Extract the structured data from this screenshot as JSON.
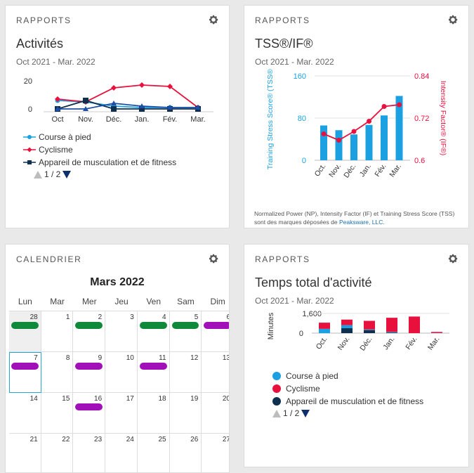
{
  "colors": {
    "course": "#1ba1e2",
    "cyclisme": "#e8103d",
    "muscu": "#0e2f4e",
    "green": "#0e8a3a",
    "purple": "#a00fb7"
  },
  "activites": {
    "eyebrow": "RAPPORTS",
    "title": "Activités",
    "range": "Oct 2021 - Mar. 2022",
    "y_ticks": [
      "20",
      "0"
    ],
    "chart_data": {
      "type": "line",
      "categories": [
        "Oct",
        "Nov.",
        "Déc.",
        "Jan.",
        "Fév.",
        "Mar."
      ],
      "ylim": [
        0,
        20
      ],
      "series": [
        {
          "name": "Course à pied",
          "values": [
            6,
            5,
            2,
            1,
            1,
            1
          ]
        },
        {
          "name": "Cyclisme",
          "values": [
            7,
            5,
            15,
            17,
            16,
            1
          ]
        },
        {
          "name": "Appareil de musculation et de fitness",
          "values": [
            0,
            6,
            0,
            0,
            0,
            0
          ]
        },
        {
          "name": "",
          "values": [
            0,
            0,
            4,
            2,
            1,
            1
          ]
        }
      ]
    },
    "legend": [
      "Course à pied",
      "Cyclisme",
      "Appareil de musculation et de fitness"
    ],
    "pager": "1 / 2"
  },
  "tss": {
    "eyebrow": "RAPPORTS",
    "title": "TSS®/IF®",
    "range": "Oct 2021 - Mar. 2022",
    "left_axis_label": "Training Stress Score® (TSS®)",
    "right_axis_label": "Intensity Factor® (IF®)",
    "left_ticks": [
      "160",
      "80",
      "0"
    ],
    "right_ticks": [
      "0.84",
      "0.72",
      "0.6"
    ],
    "chart_data": {
      "type": "bar",
      "categories": [
        "Oct.",
        "Nov.",
        "Déc.",
        "Jan.",
        "Fév.",
        "Mar."
      ],
      "tss_values": [
        66,
        57,
        49,
        67,
        85,
        122
      ],
      "if_values": [
        0.675,
        0.657,
        0.682,
        0.711,
        0.753,
        0.758
      ],
      "left_lim": [
        0,
        160
      ],
      "right_lim": [
        0.6,
        0.84
      ]
    },
    "note_prefix": "Normalized Power (NP), Intensity Factor (IF) et Training Stress Score (TSS) sont des marques déposées de ",
    "note_link": "Peaksware, LLC",
    "note_suffix": "."
  },
  "calendar": {
    "eyebrow": "CALENDRIER",
    "month": "Mars 2022",
    "weekdays": [
      "Lun",
      "Mar",
      "Mer",
      "Jeu",
      "Ven",
      "Sam",
      "Dim"
    ],
    "days": [
      {
        "n": "28",
        "other": true,
        "pill": "green"
      },
      {
        "n": "1"
      },
      {
        "n": "2",
        "pill": "green"
      },
      {
        "n": "3"
      },
      {
        "n": "4",
        "pill": "green"
      },
      {
        "n": "5",
        "pill": "green"
      },
      {
        "n": "6",
        "pill": "purple"
      },
      {
        "n": "7",
        "today": true,
        "pill": "purple"
      },
      {
        "n": "8"
      },
      {
        "n": "9",
        "pill": "purple"
      },
      {
        "n": "10"
      },
      {
        "n": "11",
        "pill": "purple"
      },
      {
        "n": "12"
      },
      {
        "n": "13"
      },
      {
        "n": "14"
      },
      {
        "n": "15"
      },
      {
        "n": "16",
        "pill": "purple"
      },
      {
        "n": "17"
      },
      {
        "n": "18"
      },
      {
        "n": "19"
      },
      {
        "n": "20"
      },
      {
        "n": "21"
      },
      {
        "n": "22"
      },
      {
        "n": "23"
      },
      {
        "n": "24"
      },
      {
        "n": "25"
      },
      {
        "n": "26"
      },
      {
        "n": "27"
      }
    ]
  },
  "temps": {
    "eyebrow": "RAPPORTS",
    "title": "Temps total d'activité",
    "range": "Oct 2021 - Mar. 2022",
    "y_label": "Minutes",
    "y_ticks": [
      "1,600",
      "0"
    ],
    "chart_data": {
      "type": "bar",
      "categories": [
        "Oct.",
        "Nov.",
        "Déc.",
        "Jan.",
        "Fév.",
        "Mar."
      ],
      "ylim": [
        0,
        1600
      ],
      "series": [
        {
          "name": "Course à pied",
          "values": [
            350,
            250,
            50,
            50,
            0,
            20
          ]
        },
        {
          "name": "Cyclisme",
          "values": [
            500,
            450,
            700,
            1150,
            1350,
            80
          ]
        },
        {
          "name": "Appareil de musculation et de fitness",
          "values": [
            0,
            400,
            250,
            50,
            0,
            0
          ]
        }
      ]
    },
    "legend": [
      "Course à pied",
      "Cyclisme",
      "Appareil de musculation et de fitness"
    ],
    "pager": "1 / 2"
  }
}
